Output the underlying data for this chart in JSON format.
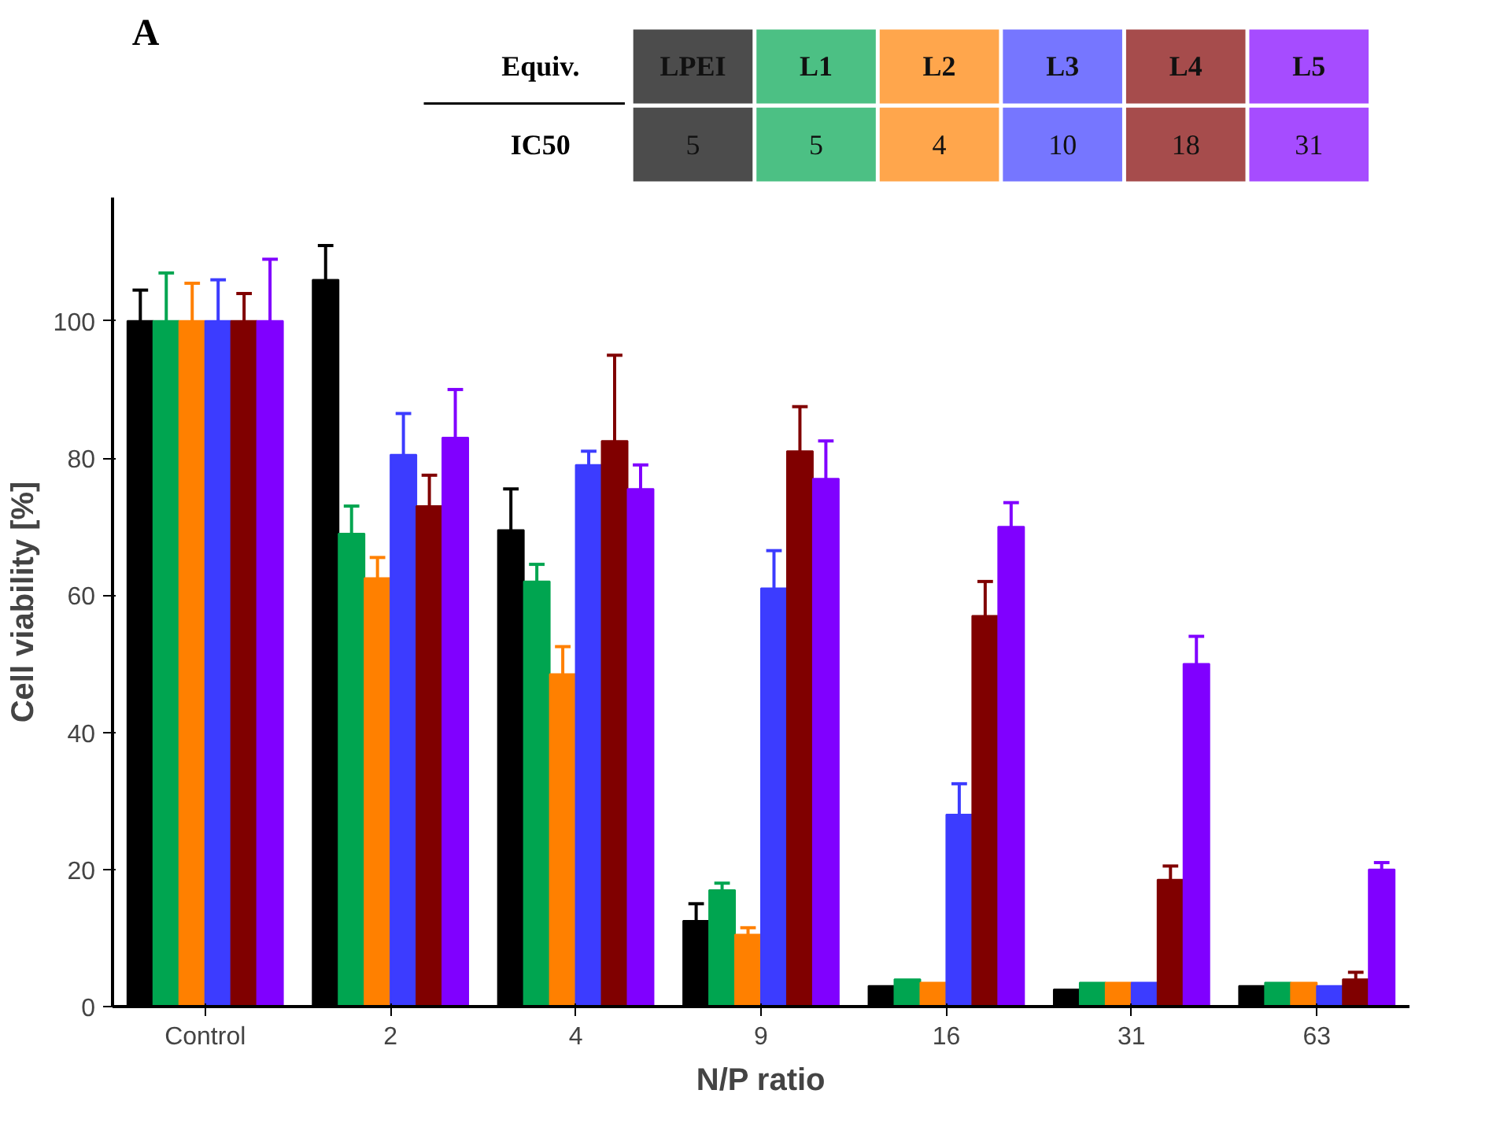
{
  "chart_data": {
    "type": "bar",
    "xlabel": "N/P ratio",
    "ylabel": "Cell viability [%]",
    "legend_title": "Equiv.",
    "legend": "top",
    "annotations": [
      "A",
      "IC50",
      "5",
      "5",
      "4",
      "10",
      "18",
      "31"
    ],
    "categories": [
      "Control",
      "2",
      "4",
      "9",
      "16",
      "31",
      "63"
    ],
    "ylim": [
      0,
      118
    ],
    "yticks": [
      0,
      20,
      40,
      60,
      80,
      100
    ],
    "grid": false,
    "series": [
      {
        "name": "LPEI",
        "color": "#000000",
        "values": [
          100,
          106,
          69.5,
          12.5,
          3,
          2.5,
          3
        ],
        "errors": [
          [
            100,
            104.5
          ],
          [
            106,
            111
          ],
          [
            69.5,
            75.5
          ],
          [
            12.5,
            15
          ],
          null,
          null,
          null
        ]
      },
      {
        "name": "L1",
        "color": "#00a550",
        "values": [
          100,
          69,
          62,
          17,
          4,
          3.5,
          3.5
        ],
        "errors": [
          [
            100,
            107
          ],
          [
            69,
            73
          ],
          [
            62,
            64.5
          ],
          [
            17,
            18
          ],
          null,
          null,
          null
        ]
      },
      {
        "name": "L2",
        "color": "#ff8000",
        "values": [
          100,
          62.5,
          48.5,
          10.5,
          3.5,
          3.5,
          3.5
        ],
        "errors": [
          [
            100,
            105.5
          ],
          [
            62.5,
            65.5
          ],
          [
            48.5,
            52.5
          ],
          [
            10.5,
            11.5
          ],
          null,
          null,
          null
        ]
      },
      {
        "name": "L3",
        "color": "#3c3cff",
        "values": [
          100,
          80.5,
          79,
          61,
          28,
          3.5,
          3
        ],
        "errors": [
          [
            100,
            106
          ],
          [
            80.5,
            86.5
          ],
          [
            79,
            81
          ],
          [
            61,
            66.5
          ],
          [
            28,
            32.5
          ],
          null,
          null
        ]
      },
      {
        "name": "L4",
        "color": "#800000",
        "values": [
          100,
          73,
          82.5,
          81,
          57,
          18.5,
          4
        ],
        "errors": [
          [
            100,
            104
          ],
          [
            73,
            77.5
          ],
          [
            82.5,
            95
          ],
          [
            81,
            87.5
          ],
          [
            57,
            62
          ],
          [
            18.5,
            20.5
          ],
          [
            4,
            5
          ]
        ]
      },
      {
        "name": "L5",
        "color": "#8000ff",
        "values": [
          100,
          83,
          75.5,
          77,
          70,
          50,
          20
        ],
        "errors": [
          [
            100,
            109
          ],
          [
            83,
            90
          ],
          [
            75.5,
            79
          ],
          [
            77,
            82.5
          ],
          [
            70,
            73.5
          ],
          [
            50,
            54
          ],
          [
            20,
            21
          ]
        ]
      }
    ]
  }
}
